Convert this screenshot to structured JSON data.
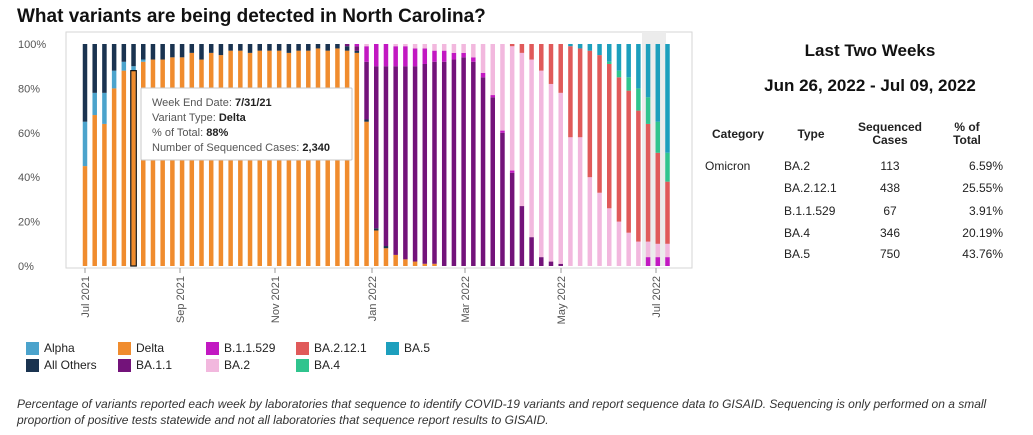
{
  "title": "What variants are being detected in North Carolina?",
  "chart_data": {
    "type": "bar",
    "stacked": true,
    "x_tick_labels": [
      "Jul 2021",
      "Sep 2021",
      "Nov 2021",
      "Jan 2022",
      "Mar 2022",
      "May 2022",
      "Jul 2022"
    ],
    "y_tick_labels": [
      "0%",
      "20%",
      "40%",
      "60%",
      "80%",
      "100%"
    ],
    "ylim": [
      0,
      100
    ],
    "series_order": [
      "Delta",
      "Alpha",
      "All Others",
      "BA.1.1",
      "B.1.1.529",
      "BA.2",
      "BA.2.12.1",
      "BA.4",
      "BA.5"
    ],
    "colors": {
      "Alpha": "#4ba3cc",
      "All Others": "#1a3350",
      "Delta": "#f08c2e",
      "BA.1.1": "#73137a",
      "B.1.1.529": "#c218c2",
      "BA.2": "#f2b8de",
      "BA.2.12.1": "#e05a5a",
      "BA.4": "#30c48e",
      "BA.5": "#1d9fbd"
    },
    "weeks": [
      {
        "Alpha": 20,
        "All Others": 35,
        "Delta": 45
      },
      {
        "Alpha": 10,
        "All Others": 22,
        "Delta": 68
      },
      {
        "Alpha": 14,
        "All Others": 22,
        "Delta": 64
      },
      {
        "Alpha": 8,
        "All Others": 12,
        "Delta": 80
      },
      {
        "Alpha": 4,
        "All Others": 8,
        "Delta": 88
      },
      {
        "Alpha": 2,
        "All Others": 10,
        "Delta": 88
      },
      {
        "Alpha": 1,
        "All Others": 7,
        "Delta": 92
      },
      {
        "Alpha": 0,
        "All Others": 7,
        "Delta": 93
      },
      {
        "Alpha": 0,
        "All Others": 7,
        "Delta": 93
      },
      {
        "Alpha": 0,
        "All Others": 6,
        "Delta": 94
      },
      {
        "Alpha": 0,
        "All Others": 6,
        "Delta": 94
      },
      {
        "Alpha": 0,
        "All Others": 4,
        "Delta": 96
      },
      {
        "Alpha": 0,
        "All Others": 7,
        "Delta": 93
      },
      {
        "Alpha": 0,
        "All Others": 4,
        "Delta": 96
      },
      {
        "Alpha": 0,
        "All Others": 5,
        "Delta": 95
      },
      {
        "Alpha": 0,
        "All Others": 3,
        "Delta": 97
      },
      {
        "Alpha": 0,
        "All Others": 3,
        "Delta": 97
      },
      {
        "Alpha": 0,
        "All Others": 4,
        "Delta": 96
      },
      {
        "Alpha": 0,
        "All Others": 3,
        "Delta": 97
      },
      {
        "Alpha": 0,
        "All Others": 3,
        "Delta": 97
      },
      {
        "Alpha": 0,
        "All Others": 3,
        "Delta": 97
      },
      {
        "Alpha": 0,
        "All Others": 4,
        "Delta": 96
      },
      {
        "Alpha": 0,
        "All Others": 3,
        "Delta": 97
      },
      {
        "Alpha": 0,
        "All Others": 3,
        "Delta": 97
      },
      {
        "All Others": 2,
        "Delta": 98
      },
      {
        "All Others": 3,
        "Delta": 97
      },
      {
        "All Others": 2,
        "Delta": 98
      },
      {
        "All Others": 2,
        "Delta": 97,
        "BA.1.1": 1
      },
      {
        "All Others": 1,
        "Delta": 96,
        "BA.1.1": 2,
        "B.1.1.529": 1
      },
      {
        "All Others": 1,
        "Delta": 65,
        "BA.1.1": 26,
        "B.1.1.529": 7,
        "BA.2": 1
      },
      {
        "All Others": 1,
        "Delta": 16,
        "BA.1.1": 73,
        "B.1.1.529": 10
      },
      {
        "All Others": 1,
        "Delta": 8,
        "BA.1.1": 81,
        "B.1.1.529": 10
      },
      {
        "All Others": 0,
        "Delta": 5,
        "BA.1.1": 85,
        "B.1.1.529": 9,
        "BA.2": 1
      },
      {
        "All Others": 0,
        "Delta": 3,
        "BA.1.1": 87,
        "B.1.1.529": 9,
        "BA.2": 1
      },
      {
        "All Others": 0,
        "Delta": 2,
        "BA.1.1": 88,
        "B.1.1.529": 8,
        "BA.2": 2
      },
      {
        "All Others": 0,
        "Delta": 1,
        "BA.1.1": 90,
        "B.1.1.529": 7,
        "BA.2": 2
      },
      {
        "All Others": 0,
        "Delta": 1,
        "BA.1.1": 91,
        "B.1.1.529": 5,
        "BA.2": 3
      },
      {
        "All Others": 0,
        "Delta": 0,
        "BA.1.1": 92,
        "B.1.1.529": 5,
        "BA.2": 3
      },
      {
        "All Others": 0,
        "BA.1.1": 93,
        "B.1.1.529": 3,
        "BA.2": 4
      },
      {
        "All Others": 0,
        "BA.1.1": 94,
        "B.1.1.529": 2,
        "BA.2": 4
      },
      {
        "All Others": 0,
        "BA.1.1": 92,
        "B.1.1.529": 2,
        "BA.2": 6
      },
      {
        "All Others": 0,
        "BA.1.1": 85,
        "B.1.1.529": 2,
        "BA.2": 13
      },
      {
        "All Others": 0,
        "BA.1.1": 76,
        "B.1.1.529": 1,
        "BA.2": 23
      },
      {
        "All Others": 0,
        "BA.1.1": 60,
        "B.1.1.529": 1,
        "BA.2": 39
      },
      {
        "All Others": 0,
        "BA.1.1": 42,
        "B.1.1.529": 1,
        "BA.2": 56,
        "BA.2.12.1": 1
      },
      {
        "All Others": 0,
        "BA.1.1": 27,
        "BA.2": 69,
        "BA.2.12.1": 4
      },
      {
        "All Others": 0,
        "BA.1.1": 13,
        "BA.2": 80,
        "BA.2.12.1": 7
      },
      {
        "All Others": 0,
        "BA.1.1": 4,
        "BA.2": 84,
        "BA.2.12.1": 12
      },
      {
        "All Others": 0,
        "BA.1.1": 2,
        "BA.2": 80,
        "BA.2.12.1": 18
      },
      {
        "All Others": 0,
        "BA.1.1": 1,
        "BA.2": 77,
        "BA.2.12.1": 22
      },
      {
        "All Others": 0,
        "BA.2": 58,
        "BA.2.12.1": 41,
        "BA.4": 0,
        "BA.5": 1
      },
      {
        "All Others": 0,
        "BA.2": 58,
        "BA.2.12.1": 40,
        "BA.5": 2
      },
      {
        "All Others": 0,
        "BA.2": 40,
        "BA.2.12.1": 57,
        "BA.5": 3
      },
      {
        "All Others": 0,
        "BA.2": 33,
        "BA.2.12.1": 62,
        "BA.5": 5
      },
      {
        "All Others": 0,
        "BA.2": 26,
        "BA.2.12.1": 65,
        "BA.4": 1,
        "BA.5": 8
      },
      {
        "All Others": 0,
        "BA.2": 20,
        "BA.2.12.1": 65,
        "BA.4": 3,
        "BA.5": 12
      },
      {
        "All Others": 0,
        "BA.2": 15,
        "BA.2.12.1": 64,
        "BA.4": 6,
        "BA.5": 15
      },
      {
        "All Others": 0,
        "BA.2": 11,
        "BA.2.12.1": 59,
        "BA.4": 10,
        "BA.5": 20
      },
      {
        "All Others": 0,
        "B.1.1.529": 4,
        "BA.2": 7,
        "BA.2.12.1": 53,
        "BA.4": 12,
        "BA.5": 24
      },
      {
        "All Others": 0,
        "B.1.1.529": 4,
        "BA.2": 6,
        "BA.2.12.1": 41,
        "BA.4": 14,
        "BA.5": 35
      },
      {
        "All Others": 0,
        "B.1.1.529": 4,
        "BA.2": 6,
        "BA.2.12.1": 28,
        "BA.4": 13,
        "BA.5": 49
      }
    ],
    "tooltip": {
      "rows": [
        {
          "label": "Week End Date: ",
          "value": "7/31/21"
        },
        {
          "label": "Variant Type: ",
          "value": "Delta"
        },
        {
          "label": "% of Total: ",
          "value": "88%"
        },
        {
          "label": "Number of Sequenced Cases: ",
          "value": "2,340"
        }
      ]
    },
    "legend": [
      [
        "Alpha",
        "Delta",
        "B.1.1.529",
        "BA.2.12.1",
        "BA.5"
      ],
      [
        "All Others",
        "BA.1.1",
        "BA.2",
        "BA.4"
      ]
    ]
  },
  "right_panel": {
    "heading": "Last Two Weeks",
    "date_range": "Jun 26, 2022 - Jul 09, 2022",
    "columns": {
      "category": "Category",
      "type": "Type",
      "sequenced_cases": [
        "Sequenced",
        "Cases"
      ],
      "pct_total": [
        "% of",
        "Total"
      ]
    },
    "category": "Omicron",
    "rows": [
      {
        "type": "BA.2",
        "cases": "113",
        "pct": "6.59%"
      },
      {
        "type": "BA.2.12.1",
        "cases": "438",
        "pct": "25.55%"
      },
      {
        "type": "B.1.1.529",
        "cases": "67",
        "pct": "3.91%"
      },
      {
        "type": "BA.4",
        "cases": "346",
        "pct": "20.19%"
      },
      {
        "type": "BA.5",
        "cases": "750",
        "pct": "43.76%"
      }
    ]
  },
  "footnote": "Percentage of variants reported each week by laboratories that sequence to identify COVID-19 variants and report sequence data to GISAID. Sequencing is only performed on a small proportion of positive tests statewide and not all laboratories that sequence report results to GISAID."
}
